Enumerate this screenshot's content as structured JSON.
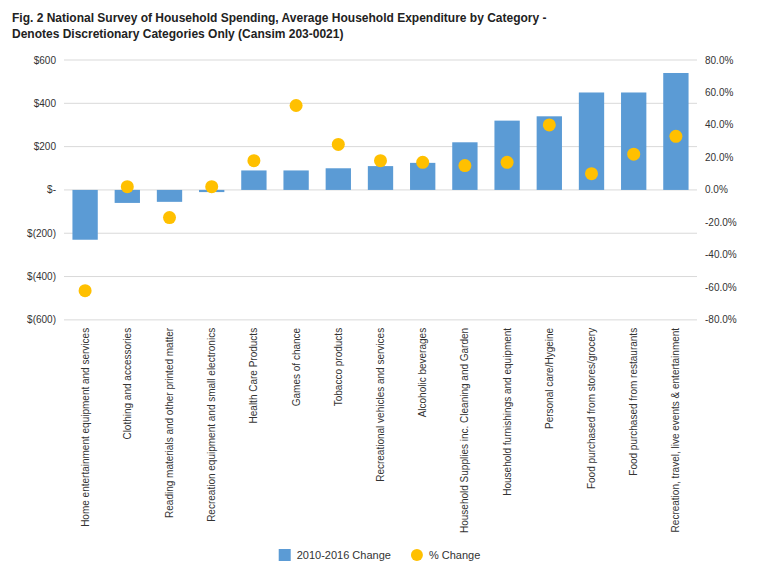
{
  "chart_data": {
    "type": "bar",
    "title": "Fig. 2 National Survey of Household Spending, Average Household Expenditure by Category -\nDenotes Discretionary Categories Only (Cansim 203-0021)",
    "categories": [
      "Home entertainment equipment and services",
      "Clothing and accessories",
      "Reading materials and other printed matter",
      "Recreation equipment and small electronics",
      "Health Care Products",
      "Games of chance",
      "Tobacco products",
      "Recreational vehicles and services",
      "Alcoholic beverages",
      "Household Supplies inc. Cleaning and Garden",
      "Household furnishings and equipment",
      "Personal care/Hygeine",
      "Food purchased from stores/grocery",
      "Food purchased from restaurants",
      "Recreation, travel, live events & entertainment"
    ],
    "series": [
      {
        "name": "2010-2016 Change",
        "type": "bar",
        "color": "#5B9BD5",
        "values": [
          -230,
          -60,
          -55,
          -10,
          90,
          90,
          100,
          110,
          125,
          220,
          320,
          340,
          450,
          450,
          540
        ]
      },
      {
        "name": "% Change",
        "type": "scatter",
        "marker": "circle",
        "color": "#FFC000",
        "axis": "y2",
        "values": [
          -62,
          2,
          -17,
          2,
          18,
          52,
          28,
          18,
          17,
          15,
          17,
          40,
          10,
          22,
          33
        ]
      }
    ],
    "ylim": [
      -600,
      600
    ],
    "yticks": [
      {
        "value": -600,
        "label": "$(600)"
      },
      {
        "value": -400,
        "label": "$(400)"
      },
      {
        "value": -200,
        "label": "$(200)"
      },
      {
        "value": 0,
        "label": "$-"
      },
      {
        "value": 200,
        "label": "$200"
      },
      {
        "value": 400,
        "label": "$400"
      },
      {
        "value": 600,
        "label": "$600"
      }
    ],
    "y2lim": [
      -80,
      80
    ],
    "y2ticks": [
      {
        "value": -80,
        "label": "-80.0%"
      },
      {
        "value": -60,
        "label": "-60.0%"
      },
      {
        "value": -40,
        "label": "-40.0%"
      },
      {
        "value": -20,
        "label": "-20.0%"
      },
      {
        "value": 0,
        "label": "0.0%"
      },
      {
        "value": 20,
        "label": "20.0%"
      },
      {
        "value": 40,
        "label": "40.0%"
      },
      {
        "value": 60,
        "label": "60.0%"
      },
      {
        "value": 80,
        "label": "80.0%"
      }
    ],
    "grid": true,
    "legend": "bottom"
  }
}
